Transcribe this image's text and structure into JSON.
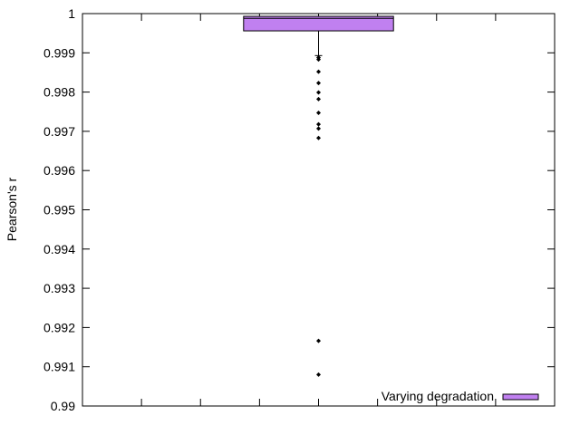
{
  "chart_data": {
    "type": "box",
    "title": "",
    "xlabel": "",
    "ylabel": "Pearson's r",
    "ylim": [
      0.99,
      1.0
    ],
    "yticks": [
      "0.99",
      "0.991",
      "0.992",
      "0.993",
      "0.994",
      "0.995",
      "0.996",
      "0.997",
      "0.998",
      "0.999",
      "1"
    ],
    "grid": false,
    "legend_position": "bottom-right",
    "series": [
      {
        "name": "Varying degradation",
        "color": "#c080f0",
        "box": {
          "whisker_low": 0.99893,
          "q1": 0.99956,
          "median": 0.99988,
          "q3": 0.99993,
          "whisker_high": 0.99995
        },
        "outliers": [
          0.99888,
          0.99883,
          0.99852,
          0.99823,
          0.99799,
          0.99782,
          0.99747,
          0.99718,
          0.99707,
          0.99683,
          0.99166,
          0.9908
        ]
      }
    ]
  }
}
